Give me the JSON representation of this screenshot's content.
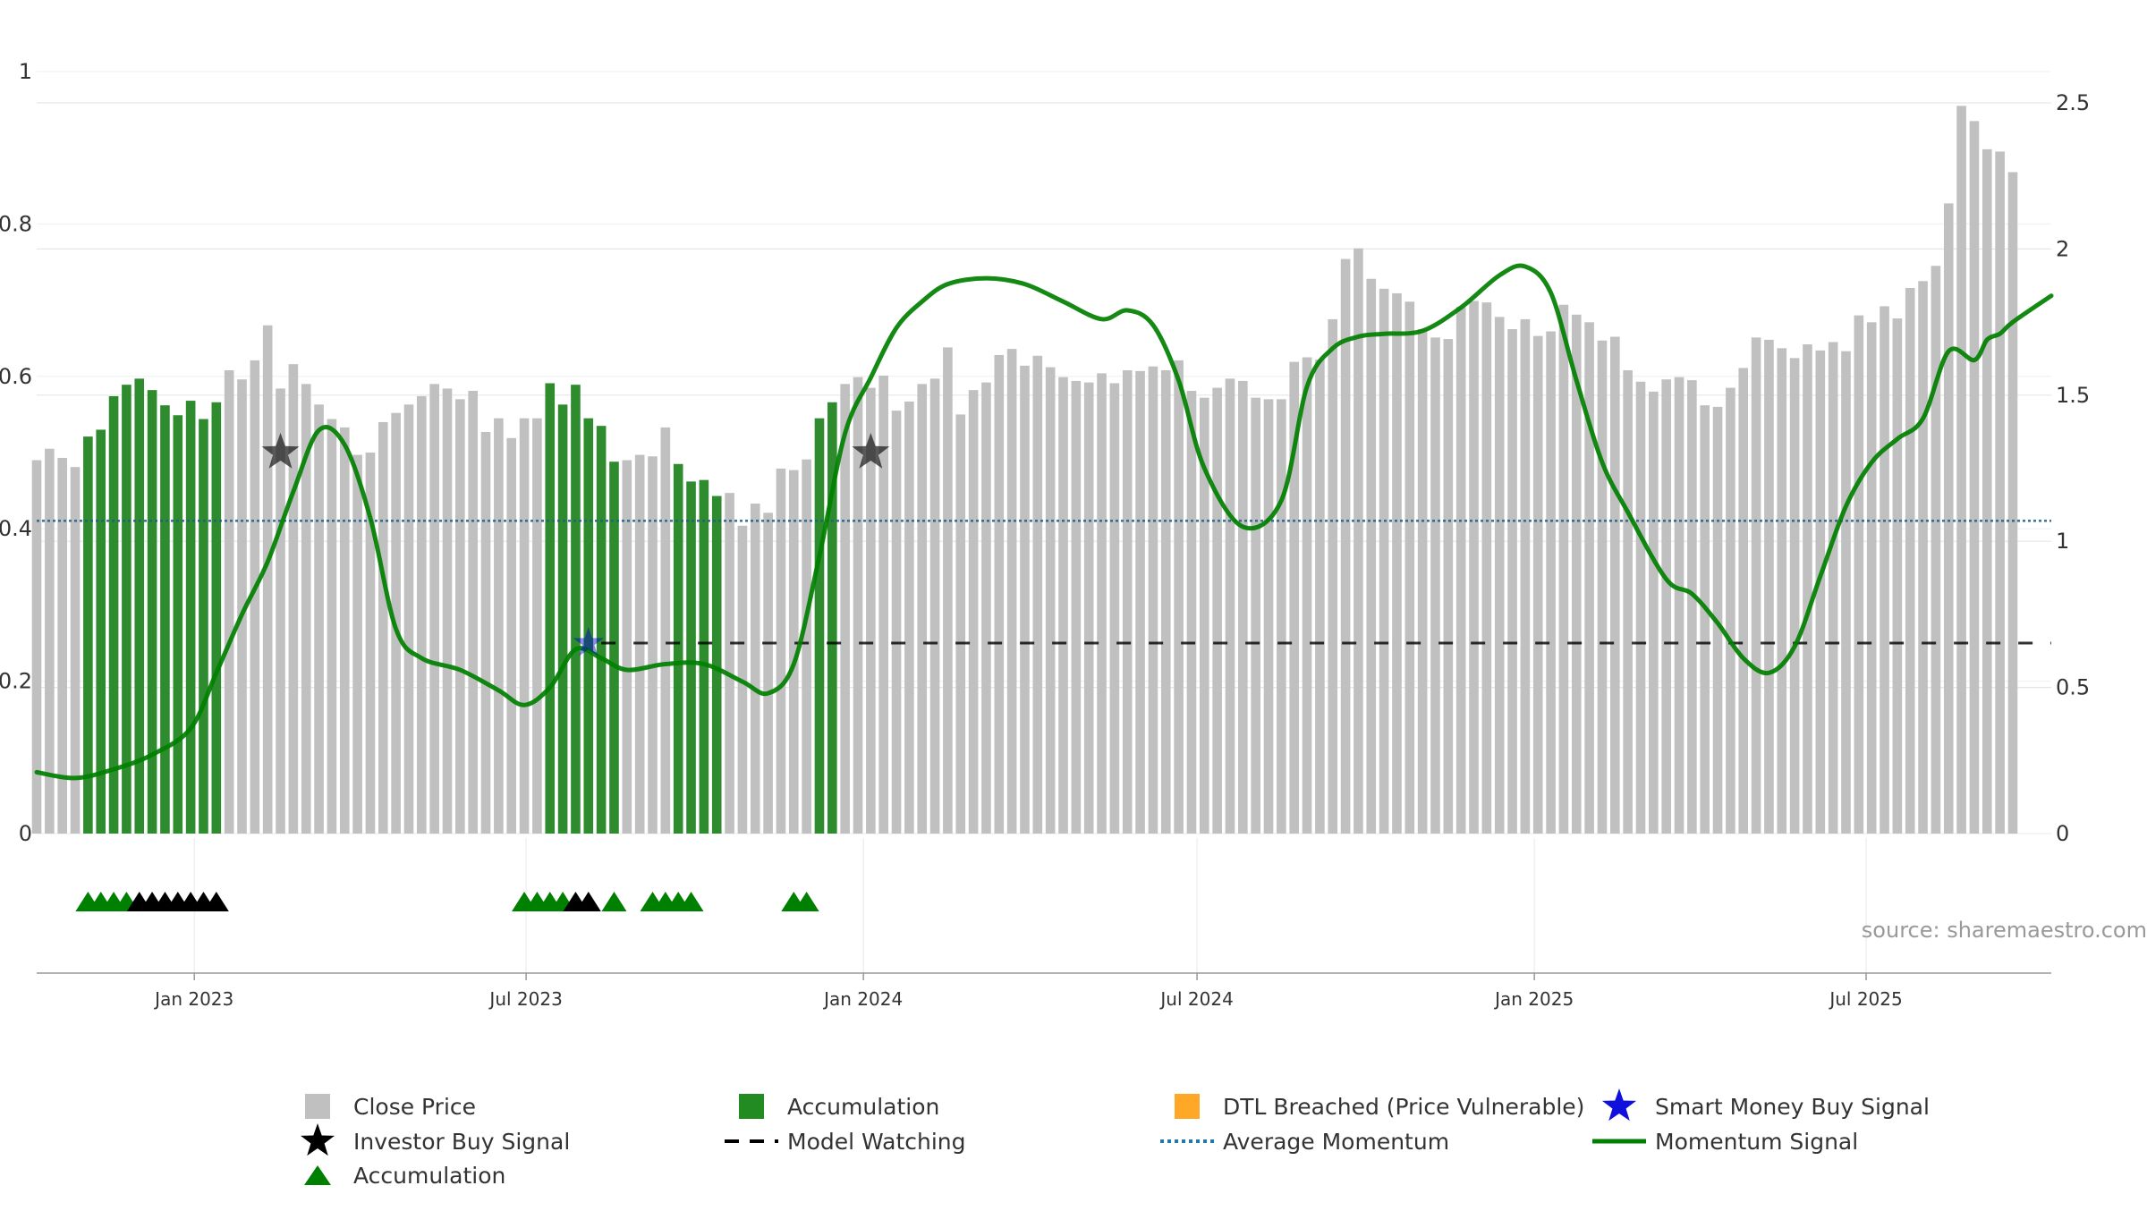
{
  "chart_data": {
    "type": "bar",
    "source_text": "source: sharemaestro.com",
    "colors": {
      "close_price": "#c0c0c0",
      "accumulation": "#2e8b2e",
      "momentum": "#008000",
      "average_momentum": "#1f5f8b",
      "model_watching": "#000000",
      "dtl": "#ffa500",
      "smart_money": "#0000cc",
      "investor": "#000000"
    },
    "axes": {
      "left_ylim": [
        0,
        1
      ],
      "left_ticks": [
        "0",
        "0.2",
        "0.4",
        "0.6",
        "0.8",
        "1"
      ],
      "right_ylim": [
        0,
        2.5
      ],
      "right_ticks": [
        "0",
        "0.5",
        "1",
        "1.5",
        "2",
        "2.5"
      ],
      "x_start": "2022-10-07",
      "x_end": "2025-10-10",
      "x_ticks": [
        {
          "date": "2023-01-01",
          "label": "Jan 2023"
        },
        {
          "date": "2023-07-01",
          "label": "Jul 2023"
        },
        {
          "date": "2024-01-01",
          "label": "Jan 2024"
        },
        {
          "date": "2024-07-01",
          "label": "Jul 2024"
        },
        {
          "date": "2025-01-01",
          "label": "Jan 2025"
        },
        {
          "date": "2025-07-01",
          "label": "Jul 2025"
        }
      ]
    },
    "bars_start": "2022-10-07",
    "bars_interval_days": 7,
    "close_price_bar_heights": [
      0.49,
      0.505,
      0.493,
      0.481,
      0.521,
      0.53,
      0.574,
      0.589,
      0.597,
      0.582,
      0.562,
      0.549,
      0.568,
      0.544,
      0.566,
      0.608,
      0.596,
      0.621,
      0.667,
      0.584,
      0.616,
      0.59,
      0.563,
      0.544,
      0.533,
      0.497,
      0.5,
      0.54,
      0.552,
      0.563,
      0.574,
      0.59,
      0.584,
      0.57,
      0.581,
      0.527,
      0.545,
      0.519,
      0.545,
      0.545,
      0.591,
      0.563,
      0.589,
      0.545,
      0.535,
      0.488,
      0.49,
      0.497,
      0.495,
      0.533,
      0.485,
      0.462,
      0.464,
      0.443,
      0.447,
      0.404,
      0.433,
      0.421,
      0.479,
      0.477,
      0.491,
      0.545,
      0.566,
      0.59,
      0.599,
      0.585,
      0.601,
      0.555,
      0.567,
      0.59,
      0.597,
      0.638,
      0.55,
      0.582,
      0.592,
      0.628,
      0.636,
      0.614,
      0.627,
      0.612,
      0.599,
      0.594,
      0.592,
      0.604,
      0.591,
      0.608,
      0.607,
      0.613,
      0.608,
      0.621,
      0.581,
      0.572,
      0.585,
      0.597,
      0.594,
      0.572,
      0.57,
      0.57,
      0.619,
      0.625,
      0.622,
      0.675,
      0.754,
      0.768,
      0.728,
      0.715,
      0.709,
      0.698,
      0.662,
      0.651,
      0.649,
      0.691,
      0.699,
      0.697,
      0.678,
      0.662,
      0.675,
      0.653,
      0.659,
      0.694,
      0.681,
      0.671,
      0.647,
      0.652,
      0.608,
      0.593,
      0.58,
      0.596,
      0.599,
      0.595,
      0.562,
      0.56,
      0.585,
      0.611,
      0.651,
      0.648,
      0.637,
      0.624,
      0.642,
      0.634,
      0.645,
      0.633,
      0.68,
      0.671,
      0.692,
      0.676,
      0.716,
      0.725,
      0.745,
      0.827,
      0.955,
      0.935,
      0.898,
      0.895,
      0.868
    ],
    "accumulation_bars": [
      {
        "from": 4,
        "to": 14
      },
      {
        "from": 40,
        "to": 45
      },
      {
        "from": 50,
        "to": 53
      },
      {
        "from": 61,
        "to": 62
      }
    ],
    "momentum_signal": {
      "dates": [
        "2022-10-07",
        "2022-10-28",
        "2022-11-18",
        "2022-12-09",
        "2022-12-30",
        "2023-01-13",
        "2023-01-27",
        "2023-02-10",
        "2023-02-24",
        "2023-03-10",
        "2023-03-24",
        "2023-04-07",
        "2023-04-21",
        "2023-05-05",
        "2023-05-26",
        "2023-06-16",
        "2023-06-30",
        "2023-07-14",
        "2023-07-28",
        "2023-08-11",
        "2023-08-25",
        "2023-09-15",
        "2023-10-06",
        "2023-10-27",
        "2023-11-10",
        "2023-11-24",
        "2023-12-08",
        "2023-12-22",
        "2024-01-05",
        "2024-01-19",
        "2024-02-02",
        "2024-02-16",
        "2024-03-08",
        "2024-03-29",
        "2024-04-19",
        "2024-05-10",
        "2024-05-24",
        "2024-06-07",
        "2024-06-21",
        "2024-07-05",
        "2024-07-26",
        "2024-08-16",
        "2024-08-30",
        "2024-09-13",
        "2024-09-27",
        "2024-10-11",
        "2024-11-01",
        "2024-11-22",
        "2024-12-13",
        "2024-12-27",
        "2025-01-10",
        "2025-01-24",
        "2025-02-07",
        "2025-02-21",
        "2025-03-14",
        "2025-03-28",
        "2025-04-11",
        "2025-04-25",
        "2025-05-09",
        "2025-05-23",
        "2025-06-06",
        "2025-06-20",
        "2025-07-04",
        "2025-07-18",
        "2025-08-01",
        "2025-08-15",
        "2025-08-29",
        "2025-09-05",
        "2025-09-12",
        "2025-09-19",
        "2025-10-10"
      ],
      "values": [
        0.21,
        0.19,
        0.22,
        0.27,
        0.36,
        0.55,
        0.75,
        0.93,
        1.17,
        1.38,
        1.33,
        1.08,
        0.7,
        0.6,
        0.56,
        0.49,
        0.44,
        0.5,
        0.63,
        0.6,
        0.56,
        0.58,
        0.58,
        0.52,
        0.48,
        0.58,
        0.95,
        1.37,
        1.56,
        1.73,
        1.82,
        1.88,
        1.9,
        1.88,
        1.82,
        1.76,
        1.79,
        1.74,
        1.55,
        1.25,
        1.05,
        1.14,
        1.53,
        1.66,
        1.7,
        1.71,
        1.72,
        1.8,
        1.91,
        1.94,
        1.85,
        1.55,
        1.27,
        1.1,
        0.87,
        0.82,
        0.72,
        0.6,
        0.55,
        0.64,
        0.88,
        1.12,
        1.27,
        1.35,
        1.42,
        1.65,
        1.62,
        1.69,
        1.71,
        1.75,
        1.84
      ]
    },
    "average_momentum": 1.07,
    "model_watching": {
      "start": "2023-08-11",
      "end": "2025-10-10",
      "value": 0.25
    },
    "investor_buy_signals": [
      {
        "date": "2023-02-17",
        "value": 0.5
      },
      {
        "date": "2024-01-05",
        "value": 0.5
      }
    ],
    "smart_money_buy_signals": [
      {
        "date": "2023-08-04",
        "value": 0.25
      }
    ],
    "accumulation_triangles": [
      {
        "date": "2022-11-04",
        "color": "green"
      },
      {
        "date": "2022-11-11",
        "color": "green"
      },
      {
        "date": "2022-11-18",
        "color": "green"
      },
      {
        "date": "2022-11-25",
        "color": "green"
      },
      {
        "date": "2022-12-02",
        "color": "black"
      },
      {
        "date": "2022-12-09",
        "color": "black"
      },
      {
        "date": "2022-12-16",
        "color": "black"
      },
      {
        "date": "2022-12-23",
        "color": "black"
      },
      {
        "date": "2022-12-30",
        "color": "black"
      },
      {
        "date": "2023-01-06",
        "color": "black"
      },
      {
        "date": "2023-01-13",
        "color": "black"
      },
      {
        "date": "2023-06-30",
        "color": "green"
      },
      {
        "date": "2023-07-07",
        "color": "green"
      },
      {
        "date": "2023-07-14",
        "color": "green"
      },
      {
        "date": "2023-07-21",
        "color": "green"
      },
      {
        "date": "2023-07-28",
        "color": "black"
      },
      {
        "date": "2023-08-04",
        "color": "black"
      },
      {
        "date": "2023-08-18",
        "color": "green"
      },
      {
        "date": "2023-09-08",
        "color": "green"
      },
      {
        "date": "2023-09-15",
        "color": "green"
      },
      {
        "date": "2023-09-22",
        "color": "green"
      },
      {
        "date": "2023-09-29",
        "color": "green"
      },
      {
        "date": "2023-11-24",
        "color": "green"
      },
      {
        "date": "2023-12-01",
        "color": "green"
      }
    ],
    "legend": [
      {
        "key": "close_price",
        "label": "Close Price",
        "marker": "square",
        "color": "#c0c0c0"
      },
      {
        "key": "accumulation_bar",
        "label": "Accumulation",
        "marker": "square",
        "color": "#228b22"
      },
      {
        "key": "dtl",
        "label": "DTL Breached (Price Vulnerable)",
        "marker": "square",
        "color": "#ffa726"
      },
      {
        "key": "smart_money",
        "label": "Smart Money Buy Signal",
        "marker": "star",
        "color": "#1010dd"
      },
      {
        "key": "investor",
        "label": "Investor Buy Signal",
        "marker": "star",
        "color": "#000000"
      },
      {
        "key": "model_watching",
        "label": "Model Watching",
        "marker": "dash",
        "color": "#000000"
      },
      {
        "key": "average_momentum",
        "label": "Average Momentum",
        "marker": "dot",
        "color": "#1f77b4"
      },
      {
        "key": "momentum",
        "label": "Momentum Signal",
        "marker": "line",
        "color": "#008000"
      },
      {
        "key": "accumulation_tri",
        "label": "Accumulation",
        "marker": "triangle",
        "color": "#008000"
      }
    ]
  }
}
